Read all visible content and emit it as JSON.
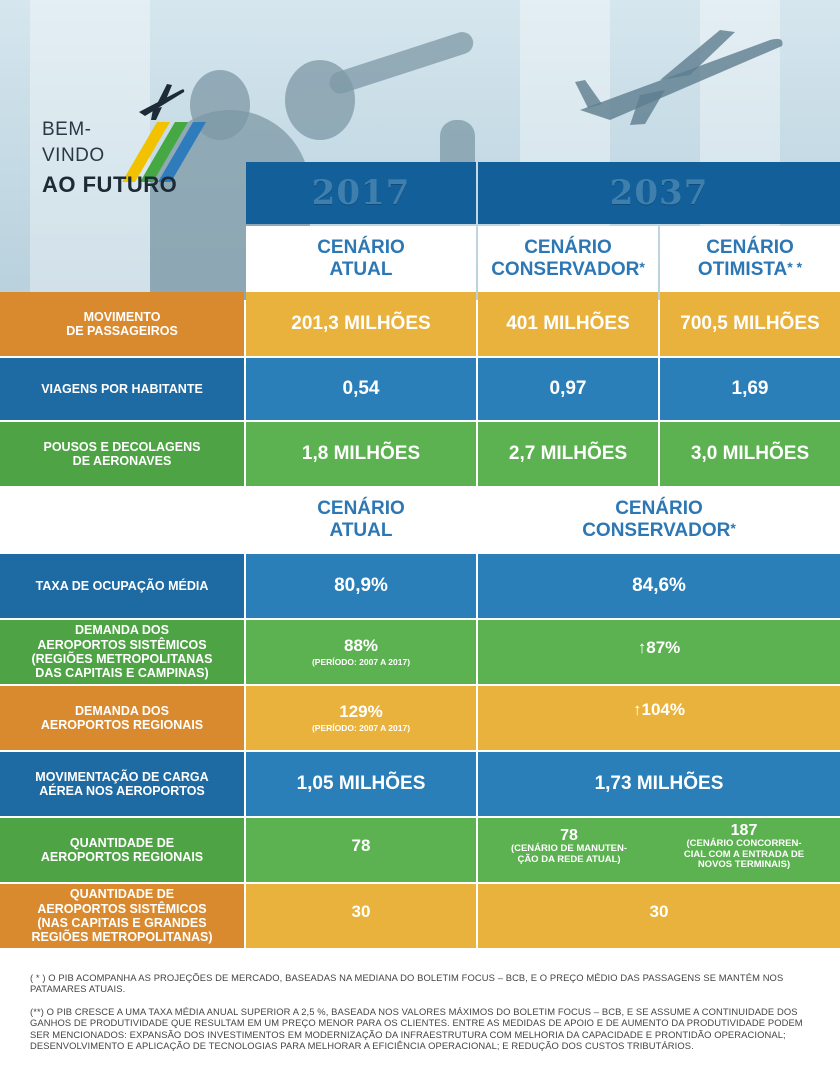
{
  "logo": {
    "line1": "BEM-",
    "line2": "VINDO",
    "line3": "AO FUTURO"
  },
  "years": {
    "y2017": "2017",
    "y2037": "2037"
  },
  "scenarios_top": {
    "atual_1": "CENÁRIO",
    "atual_2": "ATUAL",
    "conservador_1": "CENÁRIO",
    "conservador_2": "CONSERVADOR",
    "conservador_star": "*",
    "otimista_1": "CENÁRIO",
    "otimista_2": "OTIMISTA",
    "otimista_star": "* *"
  },
  "rows_top": [
    {
      "label_1": "MOVIMENTO",
      "label_2": "DE PASSAGEIROS",
      "atual": "201,3 MILHÕES",
      "conservador": "401 MILHÕES",
      "otimista": "700,5 MILHÕES"
    },
    {
      "label_1": "VIAGENS POR HABITANTE",
      "atual": "0,54",
      "conservador": "0,97",
      "otimista": "1,69"
    },
    {
      "label_1": "POUSOS E DECOLAGENS",
      "label_2": "DE AERONAVES",
      "atual": "1,8 MILHÕES",
      "conservador": "2,7 MILHÕES",
      "otimista": "3,0 MILHÕES"
    }
  ],
  "scenarios_bottom": {
    "atual_1": "CENÁRIO",
    "atual_2": "ATUAL",
    "conservador_1": "CENÁRIO",
    "conservador_2": "CONSERVADOR",
    "conservador_star": "*"
  },
  "rows_bottom": [
    {
      "label_1": "TAXA DE OCUPAÇÃO MÉDIA",
      "atual": "80,9%",
      "conservador": "84,6%"
    },
    {
      "label_1": "DEMANDA DOS",
      "label_2": "AEROPORTOS SISTÊMICOS",
      "label_3": "(REGIÕES METROPOLITANAS",
      "label_4": "DAS CAPITAIS E CAMPINAS)",
      "atual": "88%",
      "atual_note": "(PERÍODO: 2007 A 2017)",
      "conservador": "↑87%"
    },
    {
      "label_1": "DEMANDA DOS",
      "label_2": "AEROPORTOS REGIONAIS",
      "atual": "129%",
      "atual_note": "(PERÍODO: 2007 A 2017)",
      "conservador": "↑104%"
    },
    {
      "label_1": "MOVIMENTAÇÃO DE CARGA",
      "label_2": "AÉREA NOS AEROPORTOS",
      "atual": "1,05 MILHÕES",
      "conservador": "1,73 MILHÕES"
    },
    {
      "label_1": "QUANTIDADE DE",
      "label_2": "AEROPORTOS REGIONAIS",
      "atual": "78",
      "cons_a_val": "78",
      "cons_a_note_1": "(CENÁRIO DE MANUTEN-",
      "cons_a_note_2": "ÇÃO DA REDE ATUAL)",
      "cons_b_val": "187",
      "cons_b_note_1": "(CENÁRIO CONCORREN-",
      "cons_b_note_2": "CIAL COM A ENTRADA DE",
      "cons_b_note_3": "NOVOS TERMINAIS)"
    },
    {
      "label_1": "QUANTIDADE DE",
      "label_2": "AEROPORTOS SISTÊMICOS",
      "label_3": "(NAS CAPITAIS E GRANDES",
      "label_4": "REGIÕES METROPOLITANAS)",
      "atual": "30",
      "conservador": "30"
    }
  ],
  "footnotes": {
    "f1_1": "( * ) O PIB ACOMPANHA AS PROJEÇÕES DE MERCADO, BASEADAS NA MEDIANA DO BOLETIM FOCUS – BCB, E O PREÇO MÉDIO DAS PASSAGENS SE MANTÉM NOS",
    "f1_2": "PATAMARES ATUAIS.",
    "f2_1": "(**) O PIB CRESCE A UMA TAXA MÉDIA ANUAL SUPERIOR A 2,5 %, BASEADA NOS VALORES MÁXIMOS DO BOLETIM FOCUS – BCB, E SE ASSUME A CONTINUIDADE DOS",
    "f2_2": "GANHOS DE PRODUTIVIDADE QUE RESULTAM EM UM PREÇO MENOR PARA OS CLIENTES. ENTRE AS MEDIDAS DE APOIO E DE AUMENTO DA PRODUTIVIDADE PODEM",
    "f2_3": "SER MENCIONADOS: EXPANSÃO DOS INVESTIMENTOS EM MODERNIZAÇÃO DA INFRAESTRUTURA COM MELHORIA DA CAPACIDADE E PRONTIDÃO OPERACIONAL;",
    "f2_4": "DESENVOLVIMENTO E APLICAÇÃO DE TECNOLOGIAS PARA MELHORAR A EFICIÊNCIA OPERACIONAL; E REDUÇÃO DOS CUSTOS TRIBUTÁRIOS."
  },
  "icons": {
    "plane": "airplane-icon",
    "arrow": "arrow-up-icon"
  },
  "colors": {
    "orange": "#d98a2e",
    "yellow": "#e9b23c",
    "blue": "#1e6aa3",
    "green": "#4ea445",
    "navy": "#125f99",
    "scenario_text": "#2d78b4"
  }
}
